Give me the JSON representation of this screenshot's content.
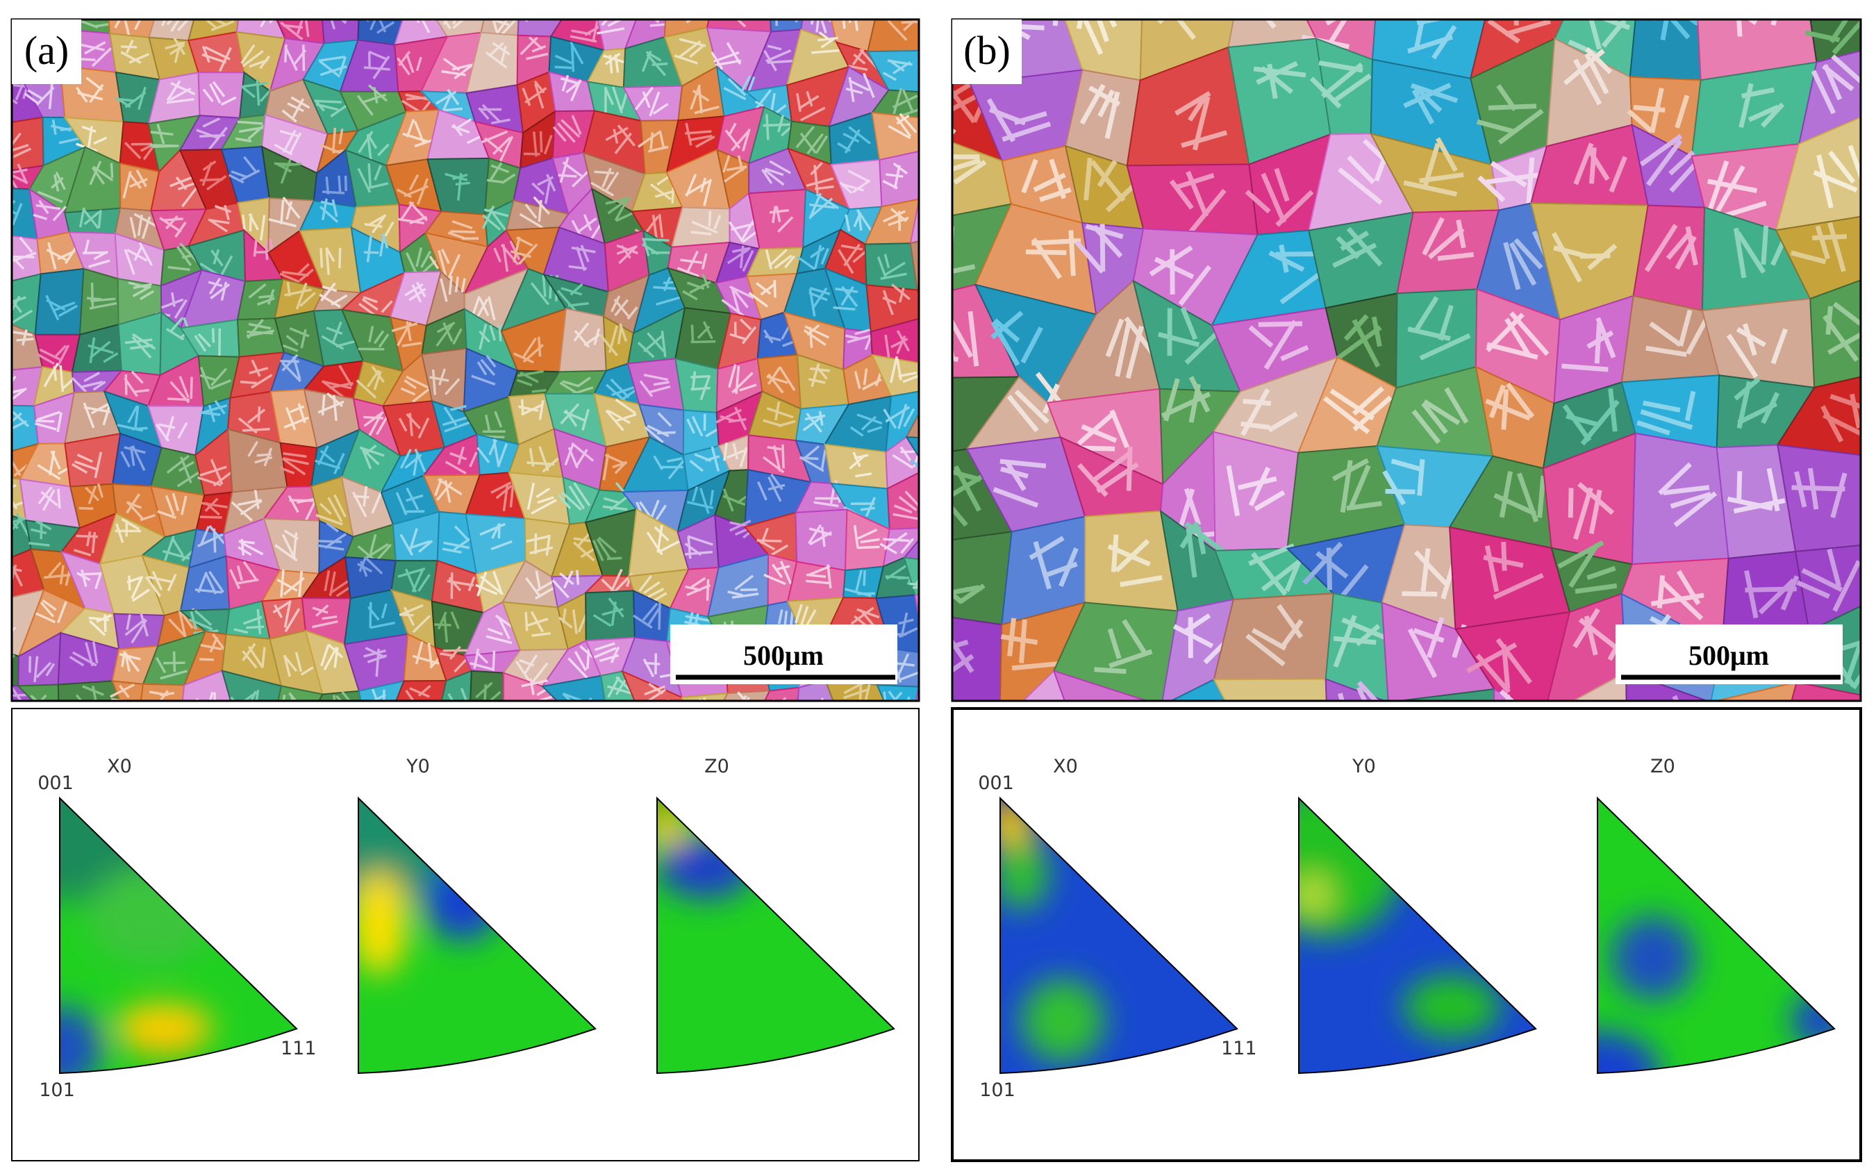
{
  "panels": [
    {
      "label": "(a)",
      "scale_bar": "500μm",
      "pole_figures": [
        {
          "title": "X0"
        },
        {
          "title": "Y0"
        },
        {
          "title": "Z0"
        }
      ],
      "corner_labels": {
        "top": "001",
        "bottom": "101",
        "right": "111"
      }
    },
    {
      "label": "(b)",
      "scale_bar": "500μm",
      "pole_figures": [
        {
          "title": "X0"
        },
        {
          "title": "Y0"
        },
        {
          "title": "Z0"
        }
      ],
      "corner_labels": {
        "top": "001",
        "bottom": "101",
        "right": "111"
      }
    }
  ]
}
